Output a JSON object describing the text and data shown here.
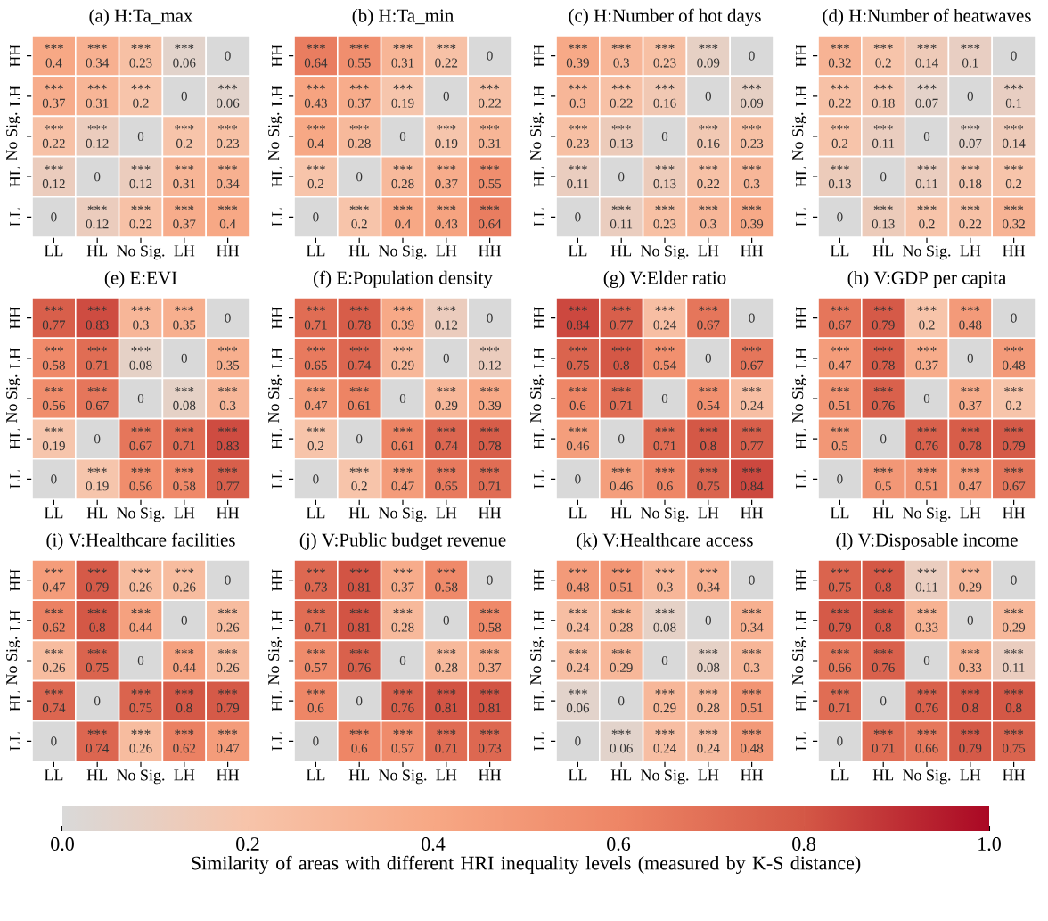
{
  "chart_data": [
    {
      "type": "heatmap",
      "title": "(a) H:Ta_max",
      "categories": [
        "LL",
        "HL",
        "No Sig.",
        "LH",
        "HH"
      ],
      "y_categories": [
        "HH",
        "LH",
        "No Sig.",
        "HL",
        "LL"
      ],
      "cells": [
        [
          0.4,
          0.34,
          0.23,
          0.06,
          0
        ],
        [
          0.37,
          0.31,
          0.2,
          0,
          0.06
        ],
        [
          0.22,
          0.12,
          0,
          0.2,
          0.23
        ],
        [
          0.12,
          0,
          0.12,
          0.31,
          0.34
        ],
        [
          0,
          0.12,
          0.22,
          0.37,
          0.4
        ]
      ],
      "cell_labels": [
        [
          "*** 0.4",
          "*** 0.34",
          "*** 0.23",
          "*** 0.06",
          "0"
        ],
        [
          "*** 0.37",
          "*** 0.31",
          "*** 0.2",
          "0",
          "*** 0.06"
        ],
        [
          "*** 0.22",
          "*** 0.12",
          "0",
          "*** 0.2",
          "*** 0.23"
        ],
        [
          "*** 0.12",
          "0",
          "*** 0.12",
          "*** 0.31",
          "*** 0.34"
        ],
        [
          "0",
          "*** 0.12",
          "*** 0.22",
          "*** 0.37",
          "*** 0.4"
        ]
      ]
    },
    {
      "type": "heatmap",
      "title": "(b) H:Ta_min",
      "categories": [
        "LL",
        "HL",
        "No Sig.",
        "LH",
        "HH"
      ],
      "y_categories": [
        "HH",
        "LH",
        "No Sig.",
        "HL",
        "LL"
      ],
      "cells": [
        [
          0.64,
          0.55,
          0.31,
          0.22,
          0
        ],
        [
          0.43,
          0.37,
          0.19,
          0,
          0.22
        ],
        [
          0.4,
          0.28,
          0,
          0.19,
          0.31
        ],
        [
          0.2,
          0,
          0.28,
          0.37,
          0.55
        ],
        [
          0,
          0.2,
          0.4,
          0.43,
          0.64
        ]
      ],
      "cell_labels": [
        [
          "*** 0.64",
          "*** 0.55",
          "*** 0.31",
          "*** 0.22",
          "0"
        ],
        [
          "*** 0.43",
          "*** 0.37",
          "*** 0.19",
          "0",
          "*** 0.22"
        ],
        [
          "*** 0.4",
          "*** 0.28",
          "0",
          "*** 0.19",
          "*** 0.31"
        ],
        [
          "*** 0.2",
          "0",
          "*** 0.28",
          "*** 0.37",
          "*** 0.55"
        ],
        [
          "0",
          "*** 0.2",
          "*** 0.4",
          "*** 0.43",
          "*** 0.64"
        ]
      ]
    },
    {
      "type": "heatmap",
      "title": "(c) H:Number of hot days",
      "categories": [
        "LL",
        "HL",
        "No Sig.",
        "LH",
        "HH"
      ],
      "y_categories": [
        "HH",
        "LH",
        "No Sig.",
        "HL",
        "LL"
      ],
      "cells": [
        [
          0.39,
          0.3,
          0.23,
          0.09,
          0
        ],
        [
          0.3,
          0.22,
          0.16,
          0,
          0.09
        ],
        [
          0.23,
          0.13,
          0,
          0.16,
          0.23
        ],
        [
          0.11,
          0,
          0.13,
          0.22,
          0.3
        ],
        [
          0,
          0.11,
          0.23,
          0.3,
          0.39
        ]
      ],
      "cell_labels": [
        [
          "*** 0.39",
          "*** 0.3",
          "*** 0.23",
          "*** 0.09",
          "0"
        ],
        [
          "*** 0.3",
          "*** 0.22",
          "*** 0.16",
          "0",
          "*** 0.09"
        ],
        [
          "*** 0.23",
          "*** 0.13",
          "0",
          "*** 0.16",
          "*** 0.23"
        ],
        [
          "*** 0.11",
          "0",
          "*** 0.13",
          "*** 0.22",
          "*** 0.3"
        ],
        [
          "0",
          "*** 0.11",
          "*** 0.23",
          "*** 0.3",
          "*** 0.39"
        ]
      ]
    },
    {
      "type": "heatmap",
      "title": "(d) H:Number of heatwaves",
      "categories": [
        "LL",
        "HL",
        "No Sig.",
        "LH",
        "HH"
      ],
      "y_categories": [
        "HH",
        "LH",
        "No Sig.",
        "HL",
        "LL"
      ],
      "cells": [
        [
          0.32,
          0.2,
          0.14,
          0.1,
          0
        ],
        [
          0.22,
          0.18,
          0.07,
          0,
          0.1
        ],
        [
          0.2,
          0.11,
          0,
          0.07,
          0.14
        ],
        [
          0.13,
          0,
          0.11,
          0.18,
          0.2
        ],
        [
          0,
          0.13,
          0.2,
          0.22,
          0.32
        ]
      ],
      "cell_labels": [
        [
          "*** 0.32",
          "*** 0.2",
          "*** 0.14",
          "*** 0.1",
          "0"
        ],
        [
          "*** 0.22",
          "*** 0.18",
          "*** 0.07",
          "0",
          "*** 0.1"
        ],
        [
          "*** 0.2",
          "*** 0.11",
          "0",
          "*** 0.07",
          "*** 0.14"
        ],
        [
          "*** 0.13",
          "0",
          "*** 0.11",
          "*** 0.18",
          "*** 0.2"
        ],
        [
          "0",
          "*** 0.13",
          "*** 0.2",
          "*** 0.22",
          "*** 0.32"
        ]
      ]
    },
    {
      "type": "heatmap",
      "title": "(e) E:EVI",
      "categories": [
        "LL",
        "HL",
        "No Sig.",
        "LH",
        "HH"
      ],
      "y_categories": [
        "HH",
        "LH",
        "No Sig.",
        "HL",
        "LL"
      ],
      "cells": [
        [
          0.77,
          0.83,
          0.3,
          0.35,
          0
        ],
        [
          0.58,
          0.71,
          0.08,
          0,
          0.35
        ],
        [
          0.56,
          0.67,
          0,
          0.08,
          0.3
        ],
        [
          0.19,
          0,
          0.67,
          0.71,
          0.83
        ],
        [
          0,
          0.19,
          0.56,
          0.58,
          0.77
        ]
      ],
      "cell_labels": [
        [
          "*** 0.77",
          "*** 0.83",
          "*** 0.3",
          "*** 0.35",
          "0"
        ],
        [
          "*** 0.58",
          "*** 0.71",
          "*** 0.08",
          "0",
          "*** 0.35"
        ],
        [
          "*** 0.56",
          "*** 0.67",
          "0",
          "*** 0.08",
          "*** 0.3"
        ],
        [
          "*** 0.19",
          "0",
          "*** 0.67",
          "*** 0.71",
          "*** 0.83"
        ],
        [
          "0",
          "*** 0.19",
          "*** 0.56",
          "*** 0.58",
          "*** 0.77"
        ]
      ]
    },
    {
      "type": "heatmap",
      "title": "(f) E:Population density",
      "categories": [
        "LL",
        "HL",
        "No Sig.",
        "LH",
        "HH"
      ],
      "y_categories": [
        "HH",
        "LH",
        "No Sig.",
        "HL",
        "LL"
      ],
      "cells": [
        [
          0.71,
          0.78,
          0.39,
          0.12,
          0
        ],
        [
          0.65,
          0.74,
          0.29,
          0,
          0.12
        ],
        [
          0.47,
          0.61,
          0,
          0.29,
          0.39
        ],
        [
          0.2,
          0,
          0.61,
          0.74,
          0.78
        ],
        [
          0,
          0.2,
          0.47,
          0.65,
          0.71
        ]
      ],
      "cell_labels": [
        [
          "*** 0.71",
          "*** 0.78",
          "*** 0.39",
          "*** 0.12",
          "0"
        ],
        [
          "*** 0.65",
          "*** 0.74",
          "*** 0.29",
          "0",
          "*** 0.12"
        ],
        [
          "*** 0.47",
          "*** 0.61",
          "0",
          "*** 0.29",
          "*** 0.39"
        ],
        [
          "*** 0.2",
          "0",
          "*** 0.61",
          "*** 0.74",
          "*** 0.78"
        ],
        [
          "0",
          "*** 0.2",
          "*** 0.47",
          "*** 0.65",
          "*** 0.71"
        ]
      ]
    },
    {
      "type": "heatmap",
      "title": "(g) V:Elder ratio",
      "categories": [
        "LL",
        "HL",
        "No Sig.",
        "LH",
        "HH"
      ],
      "y_categories": [
        "HH",
        "LH",
        "No Sig.",
        "HL",
        "LL"
      ],
      "cells": [
        [
          0.84,
          0.77,
          0.24,
          0.67,
          0
        ],
        [
          0.75,
          0.8,
          0.54,
          0,
          0.67
        ],
        [
          0.6,
          0.71,
          0,
          0.54,
          0.24
        ],
        [
          0.46,
          0,
          0.71,
          0.8,
          0.77
        ],
        [
          0,
          0.46,
          0.6,
          0.75,
          0.84
        ]
      ],
      "cell_labels": [
        [
          "*** 0.84",
          "*** 0.77",
          "*** 0.24",
          "*** 0.67",
          "0"
        ],
        [
          "*** 0.75",
          "*** 0.8",
          "*** 0.54",
          "0",
          "*** 0.67"
        ],
        [
          "*** 0.6",
          "*** 0.71",
          "0",
          "*** 0.54",
          "*** 0.24"
        ],
        [
          "*** 0.46",
          "0",
          "*** 0.71",
          "*** 0.8",
          "*** 0.77"
        ],
        [
          "0",
          "*** 0.46",
          "*** 0.6",
          "*** 0.75",
          "*** 0.84"
        ]
      ]
    },
    {
      "type": "heatmap",
      "title": "(h) V:GDP per capita",
      "categories": [
        "LL",
        "HL",
        "No Sig.",
        "LH",
        "HH"
      ],
      "y_categories": [
        "HH",
        "LH",
        "No Sig.",
        "HL",
        "LL"
      ],
      "cells": [
        [
          0.67,
          0.79,
          0.2,
          0.48,
          0
        ],
        [
          0.47,
          0.78,
          0.37,
          0,
          0.48
        ],
        [
          0.51,
          0.76,
          0,
          0.37,
          0.2
        ],
        [
          0.5,
          0,
          0.76,
          0.78,
          0.79
        ],
        [
          0,
          0.5,
          0.51,
          0.47,
          0.67
        ]
      ],
      "cell_labels": [
        [
          "*** 0.67",
          "*** 0.79",
          "*** 0.2",
          "*** 0.48",
          "0"
        ],
        [
          "*** 0.47",
          "*** 0.78",
          "*** 0.37",
          "0",
          "*** 0.48"
        ],
        [
          "*** 0.51",
          "*** 0.76",
          "0",
          "*** 0.37",
          "*** 0.2"
        ],
        [
          "*** 0.5",
          "0",
          "*** 0.76",
          "*** 0.78",
          "*** 0.79"
        ],
        [
          "0",
          "*** 0.5",
          "*** 0.51",
          "*** 0.47",
          "*** 0.67"
        ]
      ]
    },
    {
      "type": "heatmap",
      "title": "(i) V:Healthcare facilities",
      "categories": [
        "LL",
        "HL",
        "No Sig.",
        "LH",
        "HH"
      ],
      "y_categories": [
        "HH",
        "LH",
        "No Sig.",
        "HL",
        "LL"
      ],
      "cells": [
        [
          0.47,
          0.79,
          0.26,
          0.26,
          0
        ],
        [
          0.62,
          0.8,
          0.44,
          0,
          0.26
        ],
        [
          0.26,
          0.75,
          0,
          0.44,
          0.26
        ],
        [
          0.74,
          0,
          0.75,
          0.8,
          0.79
        ],
        [
          0,
          0.74,
          0.26,
          0.62,
          0.47
        ]
      ],
      "cell_labels": [
        [
          "*** 0.47",
          "*** 0.79",
          "*** 0.26",
          "*** 0.26",
          "0"
        ],
        [
          "*** 0.62",
          "*** 0.8",
          "*** 0.44",
          "0",
          "*** 0.26"
        ],
        [
          "*** 0.26",
          "*** 0.75",
          "0",
          "*** 0.44",
          "*** 0.26"
        ],
        [
          "*** 0.74",
          "0",
          "*** 0.75",
          "*** 0.8",
          "*** 0.79"
        ],
        [
          "0",
          "*** 0.74",
          "*** 0.26",
          "*** 0.62",
          "*** 0.47"
        ]
      ]
    },
    {
      "type": "heatmap",
      "title": "(j) V:Public budget revenue",
      "categories": [
        "LL",
        "HL",
        "No Sig.",
        "LH",
        "HH"
      ],
      "y_categories": [
        "HH",
        "LH",
        "No Sig.",
        "HL",
        "LL"
      ],
      "cells": [
        [
          0.73,
          0.81,
          0.37,
          0.58,
          0
        ],
        [
          0.71,
          0.81,
          0.28,
          0,
          0.58
        ],
        [
          0.57,
          0.76,
          0,
          0.28,
          0.37
        ],
        [
          0.6,
          0,
          0.76,
          0.81,
          0.81
        ],
        [
          0,
          0.6,
          0.57,
          0.71,
          0.73
        ]
      ],
      "cell_labels": [
        [
          "*** 0.73",
          "*** 0.81",
          "*** 0.37",
          "*** 0.58",
          "0"
        ],
        [
          "*** 0.71",
          "*** 0.81",
          "*** 0.28",
          "0",
          "*** 0.58"
        ],
        [
          "*** 0.57",
          "*** 0.76",
          "0",
          "*** 0.28",
          "*** 0.37"
        ],
        [
          "*** 0.6",
          "0",
          "*** 0.76",
          "*** 0.81",
          "*** 0.81"
        ],
        [
          "0",
          "*** 0.6",
          "*** 0.57",
          "*** 0.71",
          "*** 0.73"
        ]
      ]
    },
    {
      "type": "heatmap",
      "title": "(k) V:Healthcare access",
      "categories": [
        "LL",
        "HL",
        "No Sig.",
        "LH",
        "HH"
      ],
      "y_categories": [
        "HH",
        "LH",
        "No Sig.",
        "HL",
        "LL"
      ],
      "cells": [
        [
          0.48,
          0.51,
          0.3,
          0.34,
          0
        ],
        [
          0.24,
          0.28,
          0.08,
          0,
          0.34
        ],
        [
          0.24,
          0.29,
          0,
          0.08,
          0.3
        ],
        [
          0.06,
          0,
          0.29,
          0.28,
          0.51
        ],
        [
          0,
          0.06,
          0.24,
          0.24,
          0.48
        ]
      ],
      "cell_labels": [
        [
          "*** 0.48",
          "*** 0.51",
          "*** 0.3",
          "*** 0.34",
          "0"
        ],
        [
          "*** 0.24",
          "*** 0.28",
          "*** 0.08",
          "0",
          "*** 0.34"
        ],
        [
          "*** 0.24",
          "*** 0.29",
          "0",
          "*** 0.08",
          "*** 0.3"
        ],
        [
          "*** 0.06",
          "0",
          "*** 0.29",
          "*** 0.28",
          "*** 0.51"
        ],
        [
          "0",
          "*** 0.06",
          "*** 0.24",
          "*** 0.24",
          "*** 0.48"
        ]
      ]
    },
    {
      "type": "heatmap",
      "title": "(l) V:Disposable income",
      "categories": [
        "LL",
        "HL",
        "No Sig.",
        "LH",
        "HH"
      ],
      "y_categories": [
        "HH",
        "LH",
        "No Sig.",
        "HL",
        "LL"
      ],
      "clim": [
        0,
        1
      ],
      "cells": [
        [
          0.75,
          0.8,
          0.11,
          0.29,
          0
        ],
        [
          0.79,
          0.8,
          0.33,
          0,
          0.29
        ],
        [
          0.66,
          0.76,
          0,
          0.33,
          0.11
        ],
        [
          0.71,
          0,
          0.76,
          0.8,
          0.8
        ],
        [
          0,
          0.71,
          0.66,
          0.79,
          0.75
        ]
      ],
      "cell_labels": [
        [
          "*** 0.75",
          "*** 0.8",
          "*** 0.11",
          "*** 0.29",
          "0"
        ],
        [
          "*** 0.79",
          "*** 0.8",
          "*** 0.33",
          "0",
          "*** 0.29"
        ],
        [
          "*** 0.66",
          "*** 0.76",
          "0",
          "*** 0.33",
          "*** 0.11"
        ],
        [
          "*** 0.71",
          "0",
          "*** 0.76",
          "*** 0.8",
          "*** 0.8"
        ],
        [
          "0",
          "*** 0.71",
          "*** 0.66",
          "*** 0.79",
          "*** 0.75"
        ]
      ],
      "cticks": [
        {
          "value": 0,
          "label": "0.0"
        },
        0.2,
        0.4,
        0.6,
        0.8,
        {
          "value": 1,
          "label": "1.0"
        }
      ],
      "clabel": "Similarity of areas with different HRI inequality levels (measured by K-S distance)"
    }
  ]
}
